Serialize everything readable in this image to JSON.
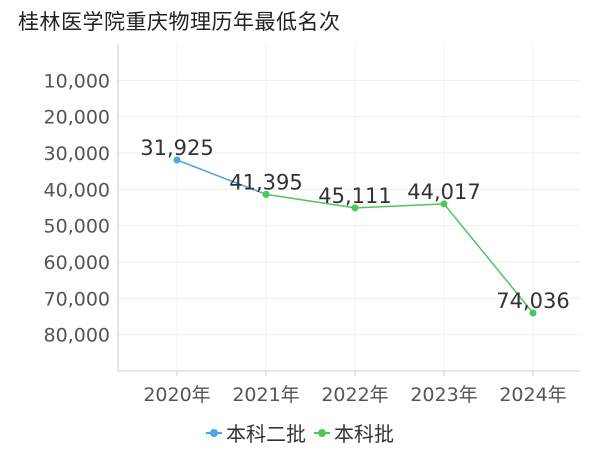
{
  "chart_data": {
    "type": "line",
    "title": "桂林医学院重庆物理历年最低名次",
    "categories": [
      "2020年",
      "2021年",
      "2022年",
      "2023年",
      "2024年"
    ],
    "y_ticks": [
      "10,000",
      "20,000",
      "30,000",
      "40,000",
      "50,000",
      "60,000",
      "70,000",
      "80,000"
    ],
    "ylim": [
      0,
      90000
    ],
    "y_inverted": true,
    "grid": true,
    "legend_position": "bottom",
    "series": [
      {
        "name": "本科二批",
        "color": "#4da6ec",
        "values": [
          31925,
          41395,
          null,
          null,
          null
        ]
      },
      {
        "name": "本科批",
        "color": "#4cc75a",
        "values": [
          null,
          41395,
          45111,
          44017,
          74036
        ]
      }
    ],
    "data_labels": [
      "31,925",
      "41,395",
      "45,111",
      "44,017",
      "74,036"
    ]
  }
}
